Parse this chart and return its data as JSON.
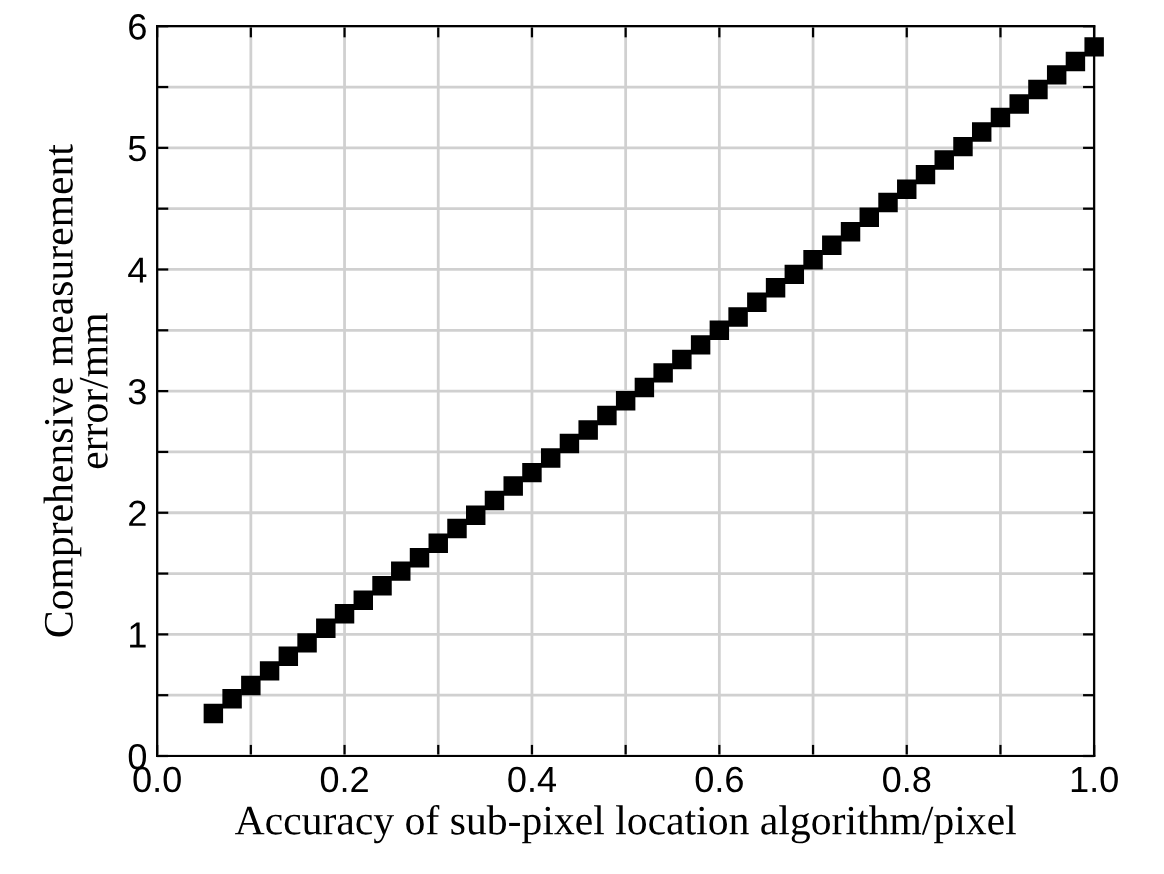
{
  "chart_data": {
    "type": "scatter",
    "xlabel": "Accuracy of sub-pixel location algorithm/pixel",
    "ylabel": "Comprehensive measurement\nerror/mm",
    "x": [
      0.06,
      0.08,
      0.1,
      0.12,
      0.14,
      0.16,
      0.18,
      0.2,
      0.22,
      0.24,
      0.26,
      0.28,
      0.3,
      0.32,
      0.34,
      0.36,
      0.38,
      0.4,
      0.42,
      0.44,
      0.46,
      0.48,
      0.5,
      0.52,
      0.54,
      0.56,
      0.58,
      0.6,
      0.62,
      0.64,
      0.66,
      0.68,
      0.7,
      0.72,
      0.74,
      0.76,
      0.78,
      0.8,
      0.82,
      0.84,
      0.86,
      0.88,
      0.9,
      0.92,
      0.94,
      0.96,
      0.98,
      1.0
    ],
    "series": [
      {
        "color": "#000000",
        "values": [
          0.35,
          0.47,
          0.58,
          0.7,
          0.82,
          0.93,
          1.05,
          1.17,
          1.28,
          1.4,
          1.52,
          1.63,
          1.75,
          1.87,
          1.98,
          2.1,
          2.22,
          2.33,
          2.45,
          2.57,
          2.68,
          2.8,
          2.92,
          3.03,
          3.15,
          3.26,
          3.38,
          3.5,
          3.61,
          3.73,
          3.85,
          3.96,
          4.08,
          4.2,
          4.31,
          4.43,
          4.55,
          4.66,
          4.78,
          4.9,
          5.01,
          5.13,
          5.25,
          5.36,
          5.48,
          5.6,
          5.71,
          5.83
        ]
      }
    ],
    "xlim": [
      0.0,
      1.0
    ],
    "ylim": [
      0,
      6
    ],
    "xticks": [
      {
        "value": 0.0,
        "label": "0.0"
      },
      {
        "value": 0.1,
        "label": null
      },
      {
        "value": 0.2,
        "label": "0.2"
      },
      {
        "value": 0.3,
        "label": null
      },
      {
        "value": 0.4,
        "label": "0.4"
      },
      {
        "value": 0.5,
        "label": null
      },
      {
        "value": 0.6,
        "label": "0.6"
      },
      {
        "value": 0.7,
        "label": null
      },
      {
        "value": 0.8,
        "label": "0.8"
      },
      {
        "value": 0.9,
        "label": null
      },
      {
        "value": 1.0,
        "label": "1.0"
      }
    ],
    "yticks": [
      0,
      {
        "value": 0.5,
        "label": null
      },
      1,
      {
        "value": 1.5,
        "label": null
      },
      2,
      {
        "value": 2.5,
        "label": null
      },
      3,
      {
        "value": 3.5,
        "label": null
      },
      4,
      {
        "value": 4.5,
        "label": null
      },
      5,
      {
        "value": 5.5,
        "label": null
      },
      6
    ],
    "grid": true,
    "marker": "square"
  }
}
